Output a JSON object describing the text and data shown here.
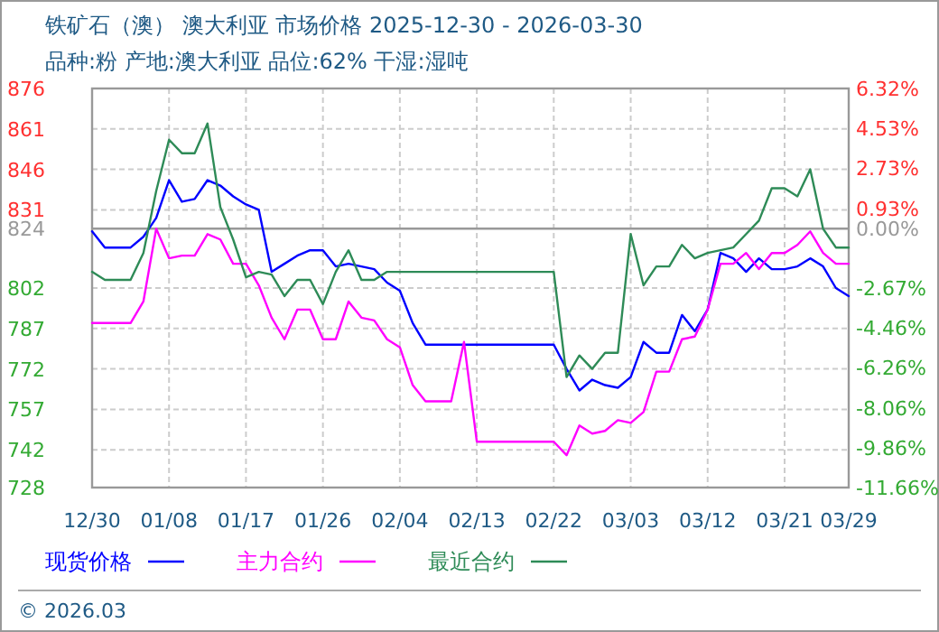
{
  "chart_data": {
    "type": "line",
    "title": "铁矿石（澳） 澳大利亚 市场价格 2025-12-30 - 2026-03-30",
    "subtitle": "品种:粉 产地:澳大利亚 品位:62% 干湿:湿吨",
    "categories": [
      "12/30",
      null,
      null,
      null,
      null,
      null,
      "01/08",
      null,
      null,
      null,
      null,
      null,
      "01/17",
      null,
      null,
      null,
      null,
      null,
      "01/26",
      null,
      null,
      null,
      null,
      null,
      "02/04",
      null,
      null,
      null,
      null,
      null,
      "02/13",
      null,
      null,
      null,
      null,
      null,
      "02/22",
      null,
      null,
      null,
      null,
      null,
      "03/03",
      null,
      null,
      null,
      null,
      null,
      "03/12",
      null,
      null,
      null,
      null,
      null,
      "03/21",
      null,
      null,
      null,
      null,
      "03/29"
    ],
    "series": [
      {
        "name": "现货价格",
        "color": "#0000ff",
        "values": [
          823,
          817,
          817,
          817,
          821,
          828,
          842,
          834,
          835,
          842,
          840,
          836,
          833,
          831,
          808,
          811,
          814,
          816,
          816,
          810,
          811,
          810,
          809,
          804,
          801,
          789,
          781,
          781,
          781,
          781,
          781,
          781,
          781,
          781,
          781,
          781,
          781,
          772,
          764,
          768,
          766,
          765,
          769,
          782,
          778,
          778,
          792,
          786,
          794,
          815,
          813,
          808,
          813,
          809,
          809,
          810,
          813,
          810,
          802,
          799
        ]
      },
      {
        "name": "主力合约",
        "color": "#ff00ff",
        "values": [
          789,
          789,
          789,
          789,
          797,
          824,
          813,
          814,
          814,
          822,
          820,
          811,
          811,
          803,
          791,
          783,
          794,
          794,
          783,
          783,
          797,
          791,
          790,
          783,
          780,
          766,
          760,
          760,
          760,
          782,
          745,
          745,
          745,
          745,
          745,
          745,
          745,
          740,
          751,
          748,
          749,
          753,
          752,
          756,
          771,
          771,
          783,
          784,
          794,
          811,
          811,
          815,
          809,
          815,
          815,
          818,
          823,
          815,
          811,
          811
        ]
      },
      {
        "name": "最近合约",
        "color": "#2e8b57",
        "values": [
          808,
          805,
          805,
          805,
          815,
          838,
          857,
          852,
          852,
          863,
          832,
          820,
          806,
          808,
          807,
          799,
          805,
          805,
          796,
          808,
          816,
          805,
          805,
          808,
          808,
          808,
          808,
          808,
          808,
          808,
          808,
          808,
          808,
          808,
          808,
          808,
          808,
          769,
          777,
          772,
          778,
          778,
          822,
          803,
          810,
          810,
          818,
          813,
          815,
          816,
          817,
          822,
          827,
          839,
          839,
          836,
          846,
          824,
          817,
          817
        ]
      }
    ],
    "ylim": [
      728,
      876
    ],
    "yticks": [
      728,
      742,
      757,
      772,
      787,
      802,
      824,
      831,
      846,
      861,
      876
    ],
    "y2lim": [
      -11.66,
      6.32
    ],
    "y2ticks": [
      {
        "value": -11.66,
        "label": "-11.66%"
      },
      {
        "value": -9.86,
        "label": "-9.86%"
      },
      {
        "value": -8.06,
        "label": "-8.06%"
      },
      {
        "value": -6.26,
        "label": "-6.26%"
      },
      {
        "value": -4.46,
        "label": "-4.46%"
      },
      {
        "value": -2.67,
        "label": "-2.67%"
      },
      {
        "value": 0,
        "label": "0.00%"
      },
      {
        "value": 0.93,
        "label": "0.93%"
      },
      {
        "value": 2.73,
        "label": "2.73%"
      },
      {
        "value": 4.53,
        "label": "4.53%"
      },
      {
        "value": 6.32,
        "label": "6.32%"
      }
    ],
    "ref_lines": [
      {
        "axis": "y",
        "value": 824,
        "color": "#999999"
      }
    ],
    "grid": true,
    "legend": "bottom",
    "marker": "none",
    "line_style": "solid",
    "annotations": [
      "© 2026.03"
    ]
  }
}
